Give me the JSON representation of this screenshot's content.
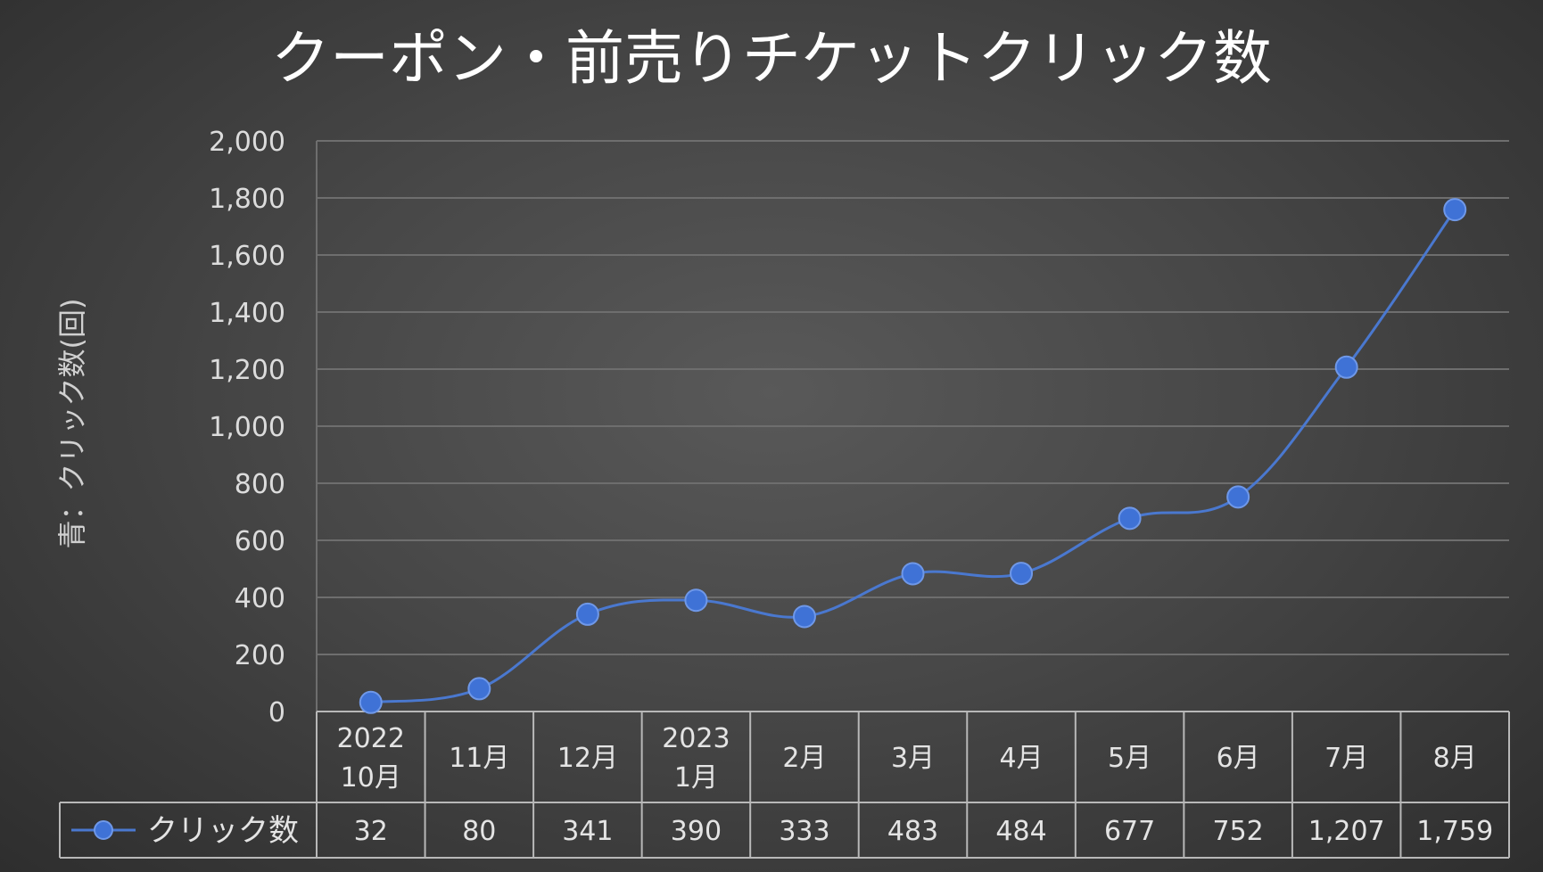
{
  "chart_data": {
    "type": "line",
    "title": "クーポン・前売りチケットクリック数",
    "ylabel": "青：クリック数(回)",
    "xlabel": "",
    "ylim": [
      0,
      2000
    ],
    "yticks": [
      0,
      200,
      400,
      600,
      800,
      1000,
      1200,
      1400,
      1600,
      1800,
      2000
    ],
    "ytick_labels": [
      "0",
      "200",
      "400",
      "600",
      "800",
      "1,000",
      "1,200",
      "1,400",
      "1,600",
      "1,800",
      "2,000"
    ],
    "grid": true,
    "legend": "data-table-left",
    "categories": [
      [
        "2022",
        "10月"
      ],
      [
        "11月"
      ],
      [
        "12月"
      ],
      [
        "2023",
        "1月"
      ],
      [
        "2月"
      ],
      [
        "3月"
      ],
      [
        "4月"
      ],
      [
        "5月"
      ],
      [
        "6月"
      ],
      [
        "7月"
      ],
      [
        "8月"
      ]
    ],
    "series": [
      {
        "name": "クリック数",
        "color": "#4472C4",
        "values": [
          32,
          80,
          341,
          390,
          333,
          483,
          484,
          677,
          752,
          1207,
          1759
        ],
        "value_labels": [
          "32",
          "80",
          "341",
          "390",
          "333",
          "483",
          "484",
          "677",
          "752",
          "1,207",
          "1,759"
        ]
      }
    ]
  }
}
